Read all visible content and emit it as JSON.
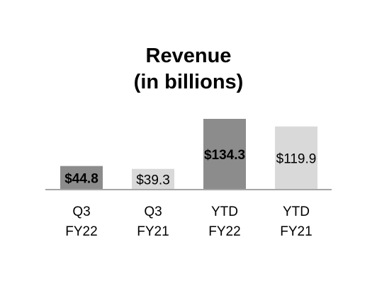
{
  "chart_data": {
    "type": "bar",
    "title": "Revenue",
    "subtitle": "(in billions)",
    "categories": [
      [
        "Q3",
        "FY22"
      ],
      [
        "Q3",
        "FY21"
      ],
      [
        "YTD",
        "FY22"
      ],
      [
        "YTD",
        "FY21"
      ]
    ],
    "values": [
      44.8,
      39.3,
      134.3,
      119.9
    ],
    "value_labels": [
      "$44.8",
      "$39.3",
      "$134.3",
      "$119.9"
    ],
    "bar_colors": [
      "#8c8c8c",
      "#d9d9d9",
      "#8c8c8c",
      "#d9d9d9"
    ],
    "label_bold": [
      true,
      false,
      true,
      false
    ],
    "baseline_color": "#a6a6a6",
    "xlabel": "",
    "ylabel": "",
    "ylim": [
      0,
      134.3
    ],
    "grid": false,
    "legend": "none"
  }
}
